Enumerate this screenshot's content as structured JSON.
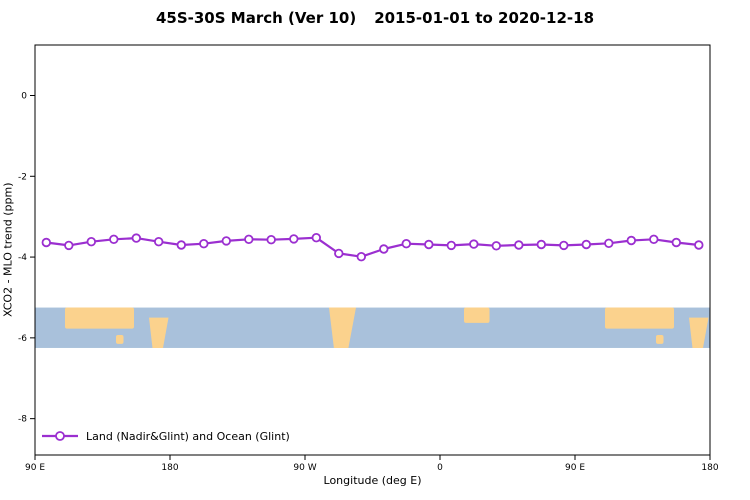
{
  "chart": {
    "title_main": "45S-30S March (Ver 10)",
    "title_dates": "2015-01-01 to 2020-12-18",
    "xlabel": "Longitude (deg E)",
    "ylabel": "XCO2 - MLO trend (ppm)",
    "legend_label": "Land (Nadir&Glint) and Ocean (Glint)"
  },
  "chart_data": {
    "type": "line",
    "title": "45S-30S March (Ver 10)  2015-01-01 to 2020-12-18",
    "xlabel": "Longitude (deg E)",
    "ylabel": "XCO2 - MLO trend (ppm)",
    "xlim": [
      90,
      540
    ],
    "ylim": [
      -8.9,
      1.25
    ],
    "grid": false,
    "legend_position": "bottom-left-inside",
    "line_color": "#9B2FD0",
    "marker": "open-circle",
    "xticks": [
      {
        "v": 90,
        "label": "90 E"
      },
      {
        "v": 180,
        "label": "180"
      },
      {
        "v": 270,
        "label": "90 W"
      },
      {
        "v": 360,
        "label": "0"
      },
      {
        "v": 450,
        "label": "90 E"
      },
      {
        "v": 540,
        "label": "180"
      }
    ],
    "yticks": [
      {
        "v": 0,
        "label": "0"
      },
      {
        "v": -2,
        "label": "-2"
      },
      {
        "v": -4,
        "label": "-4"
      },
      {
        "v": -6,
        "label": "-6"
      },
      {
        "v": -8,
        "label": "-8"
      }
    ],
    "legend": [
      "Land (Nadir&Glint) and Ocean (Glint)"
    ],
    "series": [
      {
        "name": "Land (Nadir&Glint) and Ocean (Glint)",
        "x": [
          97.5,
          112.5,
          127.5,
          142.5,
          157.5,
          172.5,
          187.5,
          202.5,
          217.5,
          232.5,
          247.5,
          262.5,
          277.5,
          292.5,
          307.5,
          322.5,
          337.5,
          352.5,
          367.5,
          382.5,
          397.5,
          412.5,
          427.5,
          442.5,
          457.5,
          472.5,
          487.5,
          502.5,
          517.5,
          532.5
        ],
        "values": [
          -3.64,
          -3.71,
          -3.62,
          -3.56,
          -3.53,
          -3.62,
          -3.7,
          -3.67,
          -3.6,
          -3.56,
          -3.57,
          -3.55,
          -3.52,
          -3.91,
          -3.99,
          -3.8,
          -3.67,
          -3.69,
          -3.71,
          -3.68,
          -3.72,
          -3.7,
          -3.69,
          -3.71,
          -3.69,
          -3.66,
          -3.59,
          -3.56,
          -3.64,
          -3.7
        ]
      }
    ],
    "map_band": {
      "description": "45S-30S latitude band world map strip",
      "top_value": -5.25,
      "bottom_value": -6.25,
      "ocean_color": "#a9c1db",
      "land_color": "#fbd28d",
      "land_segments": [
        {
          "name": "australia",
          "lon": [
            110,
            156
          ],
          "top": 0,
          "bottom": 0.52,
          "shape": "rect"
        },
        {
          "name": "tasmania",
          "lon": [
            144,
            149
          ],
          "top": 0.68,
          "bottom": 0.9,
          "shape": "rect"
        },
        {
          "name": "new-zealand",
          "lon": [
            166,
            179
          ],
          "top": 0.25,
          "bottom": 1,
          "shape": "taper"
        },
        {
          "name": "south-america",
          "lon": [
            286,
            304
          ],
          "top": 0,
          "bottom": 1,
          "shape": "taper"
        },
        {
          "name": "africa",
          "lon": [
            376,
            393
          ],
          "top": 0,
          "bottom": 0.38,
          "shape": "rect"
        },
        {
          "name": "australia-2",
          "lon": [
            470,
            516
          ],
          "top": 0,
          "bottom": 0.52,
          "shape": "rect"
        },
        {
          "name": "tasmania-2",
          "lon": [
            504,
            509
          ],
          "top": 0.68,
          "bottom": 0.9,
          "shape": "rect"
        },
        {
          "name": "new-zealand-2",
          "lon": [
            526,
            539
          ],
          "top": 0.25,
          "bottom": 1,
          "shape": "taper"
        }
      ]
    }
  }
}
